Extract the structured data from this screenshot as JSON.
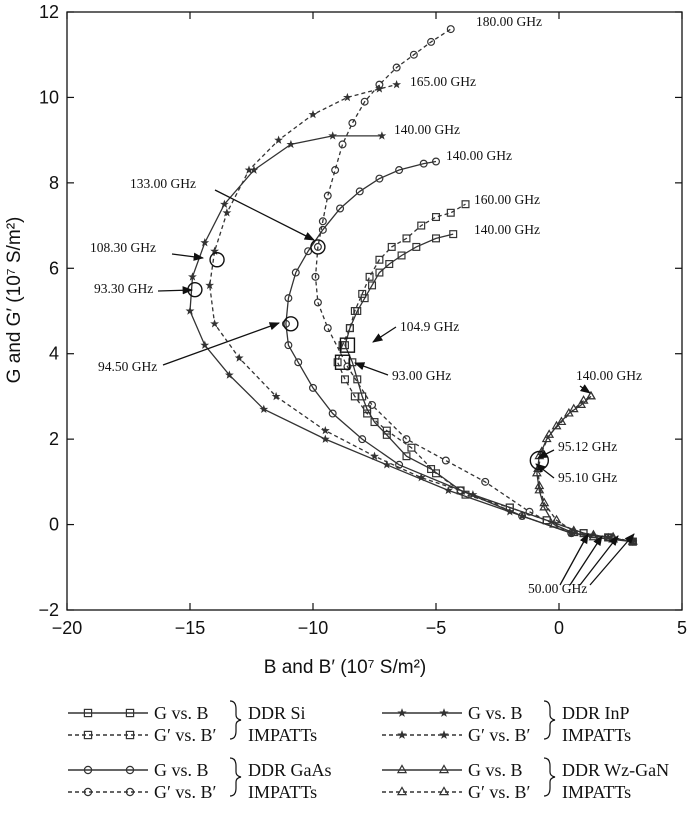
{
  "chart_data": {
    "type": "scatter",
    "xlabel": "B and B′ (10⁷ S/m²)",
    "ylabel": "G and G′ (10⁷ S/m²)",
    "xlim": [
      -20,
      5
    ],
    "ylim": [
      -2,
      12
    ],
    "xticks": [
      "−20",
      "−15",
      "−10",
      "−5",
      "0",
      "5"
    ],
    "yticks": [
      "−2",
      "0",
      "2",
      "4",
      "6",
      "8",
      "10",
      "12"
    ],
    "series": [
      {
        "name": "G vs. B",
        "group": "DDR Si IMPATTs",
        "line": "solid",
        "marker": "square",
        "color": "#333333",
        "x": [
          3.0,
          2.0,
          1.0,
          -0.5,
          -2.0,
          -4.0,
          -5.2,
          -6.2,
          -7.0,
          -7.5,
          -7.8,
          -8.0,
          -8.2,
          -8.4,
          -8.7,
          -8.5,
          -8.2,
          -7.9,
          -7.6,
          -7.3,
          -6.9,
          -6.4,
          -5.8,
          -5.0,
          -4.3
        ],
        "y": [
          -0.4,
          -0.3,
          -0.2,
          0.1,
          0.4,
          0.8,
          1.3,
          1.6,
          2.1,
          2.4,
          2.7,
          3.0,
          3.4,
          3.8,
          4.2,
          4.6,
          5.0,
          5.3,
          5.6,
          5.9,
          6.1,
          6.3,
          6.5,
          6.7,
          6.8
        ]
      },
      {
        "name": "G′ vs. B′",
        "group": "DDR Si IMPATTs",
        "line": "dashed",
        "marker": "square",
        "color": "#333333",
        "x": [
          3.0,
          2.0,
          1.0,
          -0.5,
          -2.0,
          -3.8,
          -5.0,
          -6.0,
          -7.0,
          -7.8,
          -8.3,
          -8.7,
          -9.0,
          -8.8,
          -8.5,
          -8.3,
          -8.0,
          -7.7,
          -7.3,
          -6.8,
          -6.2,
          -5.6,
          -5.0,
          -4.4,
          -3.8
        ],
        "y": [
          -0.4,
          -0.3,
          -0.2,
          0.1,
          0.4,
          0.7,
          1.2,
          1.8,
          2.2,
          2.6,
          3.0,
          3.4,
          3.8,
          4.2,
          4.6,
          5.0,
          5.4,
          5.8,
          6.2,
          6.5,
          6.7,
          7.0,
          7.2,
          7.3,
          7.5
        ]
      },
      {
        "name": "G vs. B",
        "group": "DDR GaAs IMPATTs",
        "line": "solid",
        "marker": "circle",
        "color": "#333333",
        "x": [
          3.0,
          2.0,
          0.5,
          -1.5,
          -4.0,
          -6.5,
          -8.0,
          -9.2,
          -10.0,
          -10.6,
          -11.0,
          -11.1,
          -11.0,
          -10.7,
          -10.2,
          -9.6,
          -8.9,
          -8.1,
          -7.3,
          -6.5,
          -5.5,
          -5.0
        ],
        "y": [
          -0.4,
          -0.3,
          -0.2,
          0.2,
          0.8,
          1.4,
          2.0,
          2.6,
          3.2,
          3.8,
          4.2,
          4.7,
          5.3,
          5.9,
          6.4,
          6.9,
          7.4,
          7.8,
          8.1,
          8.3,
          8.45,
          8.5
        ]
      },
      {
        "name": "G′ vs. B′",
        "group": "DDR GaAs IMPATTs",
        "line": "dashed",
        "marker": "circle",
        "color": "#333333",
        "x": [
          3.0,
          2.0,
          0.5,
          -1.2,
          -3.0,
          -4.6,
          -6.2,
          -7.6,
          -8.6,
          -9.4,
          -9.8,
          -9.9,
          -9.8,
          -9.6,
          -9.4,
          -9.1,
          -8.8,
          -8.4,
          -7.9,
          -7.3,
          -6.6,
          -5.9,
          -5.2,
          -4.4
        ],
        "y": [
          -0.4,
          -0.3,
          -0.2,
          0.3,
          1.0,
          1.5,
          2.0,
          2.8,
          3.7,
          4.6,
          5.2,
          5.8,
          6.5,
          7.1,
          7.7,
          8.3,
          8.9,
          9.4,
          9.9,
          10.3,
          10.7,
          11.0,
          11.3,
          11.6
        ]
      },
      {
        "name": "G vs. B",
        "group": "DDR InP IMPATTs",
        "line": "solid",
        "marker": "star",
        "color": "#333333",
        "x": [
          3.0,
          2.0,
          0.5,
          -2.0,
          -4.5,
          -7.0,
          -9.5,
          -12.0,
          -13.4,
          -14.4,
          -15.0,
          -14.9,
          -14.4,
          -13.6,
          -12.4,
          -10.9,
          -9.2,
          -7.2
        ],
        "y": [
          -0.4,
          -0.3,
          -0.2,
          0.3,
          0.8,
          1.4,
          2.0,
          2.7,
          3.5,
          4.2,
          5.0,
          5.8,
          6.6,
          7.5,
          8.3,
          8.9,
          9.1,
          9.1
        ]
      },
      {
        "name": "G′ vs. B′",
        "group": "DDR InP IMPATTs",
        "line": "dashed",
        "marker": "star",
        "color": "#333333",
        "x": [
          3.0,
          2.0,
          0.5,
          -1.5,
          -3.5,
          -5.6,
          -7.5,
          -9.5,
          -11.5,
          -13.0,
          -14.0,
          -14.2,
          -14.0,
          -13.5,
          -12.6,
          -11.4,
          -10.0,
          -8.6,
          -7.3,
          -6.6
        ],
        "y": [
          -0.4,
          -0.3,
          -0.2,
          0.2,
          0.7,
          1.1,
          1.6,
          2.2,
          3.0,
          3.9,
          4.7,
          5.6,
          6.4,
          7.3,
          8.3,
          9.0,
          9.6,
          10.0,
          10.2,
          10.3
        ]
      },
      {
        "name": "G vs. B",
        "group": "DDR Wz-GaN IMPATTs",
        "line": "solid",
        "marker": "triangle",
        "color": "#333333",
        "x": [
          3.0,
          2.2,
          1.4,
          0.6,
          -0.2,
          -0.6,
          -0.8,
          -0.9,
          -0.8,
          -0.5,
          -0.1,
          0.4,
          0.9,
          1.3
        ],
        "y": [
          -0.4,
          -0.35,
          -0.3,
          -0.2,
          0.0,
          0.4,
          0.8,
          1.2,
          1.6,
          2.0,
          2.3,
          2.6,
          2.8,
          3.0
        ]
      },
      {
        "name": "G′ vs. B′",
        "group": "DDR Wz-GaN IMPATTs",
        "line": "dashed",
        "marker": "triangle",
        "color": "#333333",
        "x": [
          3.0,
          2.2,
          1.4,
          0.6,
          -0.1,
          -0.6,
          -0.8,
          -0.85,
          -0.7,
          -0.4,
          0.1,
          0.6,
          1.0,
          1.3
        ],
        "y": [
          -0.4,
          -0.3,
          -0.25,
          -0.15,
          0.1,
          0.5,
          0.9,
          1.3,
          1.7,
          2.1,
          2.4,
          2.7,
          2.9,
          3.0
        ]
      }
    ],
    "annotations": [
      {
        "text": "180.00 GHz",
        "x": -4.4,
        "y": 11.6
      },
      {
        "text": "165.00 GHz",
        "x": -6.6,
        "y": 10.3
      },
      {
        "text": "140.00 GHz",
        "x": -7.2,
        "y": 9.1
      },
      {
        "text": "140.00 GHz",
        "x": -5.0,
        "y": 8.5
      },
      {
        "text": "160.00 GHz",
        "x": -3.8,
        "y": 7.5
      },
      {
        "text": "140.00 GHz",
        "x": -4.3,
        "y": 6.8
      },
      {
        "text": "133.00 GHz",
        "x": -9.7,
        "y": 6.5
      },
      {
        "text": "108.30 GHz",
        "x": -13.9,
        "y": 6.2
      },
      {
        "text": "93.30 GHz",
        "x": -14.8,
        "y": 5.5
      },
      {
        "text": "104.9 GHz",
        "x": -8.6,
        "y": 4.2
      },
      {
        "text": "94.50 GHz",
        "x": -10.9,
        "y": 4.7
      },
      {
        "text": "93.00 GHz",
        "x": -8.7,
        "y": 3.8
      },
      {
        "text": "140.00 GHz",
        "x": 1.3,
        "y": 3.0
      },
      {
        "text": "95.12 GHz",
        "x": -0.7,
        "y": 1.5
      },
      {
        "text": "95.10 GHz",
        "x": -0.7,
        "y": 1.5
      },
      {
        "text": "50.00 GHz",
        "x": 2.0,
        "y": -0.35
      }
    ],
    "legend": {
      "placement": "bottom",
      "rows": [
        {
          "left": {
            "solid": "G vs. B",
            "dashed": "G′ vs. B′",
            "marker": "square",
            "device": "DDR Si",
            "type": "IMPATTs"
          },
          "right": {
            "solid": "G vs. B",
            "dashed": "G′ vs. B′",
            "marker": "star",
            "device": "DDR InP",
            "type": "IMPATTs"
          }
        },
        {
          "left": {
            "solid": "G vs. B",
            "dashed": "G′ vs. B′",
            "marker": "circle",
            "device": "DDR GaAs",
            "type": "IMPATTs"
          },
          "right": {
            "solid": "G vs. B",
            "dashed": "G′ vs. B′",
            "marker": "triangle",
            "device": "DDR Wz-GaN",
            "type": "IMPATTs"
          }
        }
      ]
    },
    "grid": false
  }
}
